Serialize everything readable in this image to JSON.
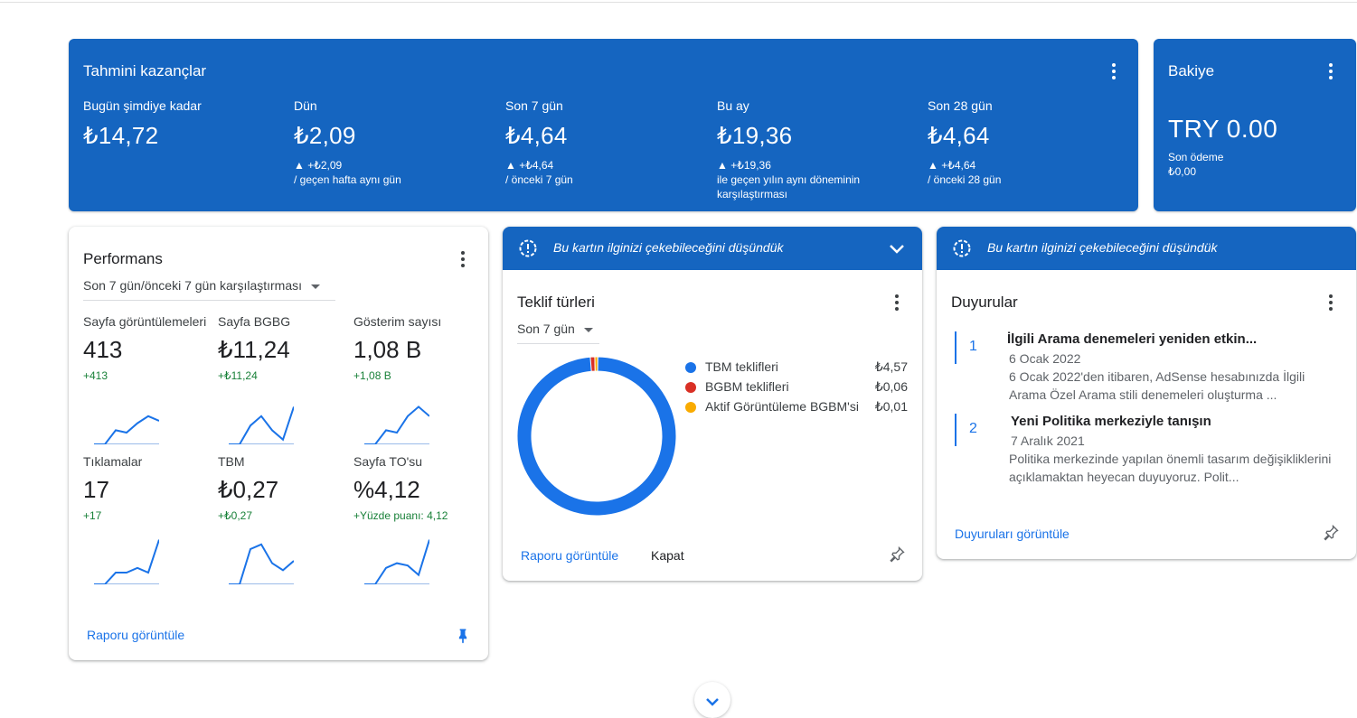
{
  "earnings": {
    "title": "Tahmini kazançlar",
    "metrics": [
      {
        "label": "Bugün şimdiye kadar",
        "value": "₺14,72",
        "change": "",
        "note": ""
      },
      {
        "label": "Dün",
        "value": "₺2,09",
        "change": "▲ +₺2,09",
        "note": "/ geçen hafta aynı gün"
      },
      {
        "label": "Son 7 gün",
        "value": "₺4,64",
        "change": "▲ +₺4,64",
        "note": "/ önceki 7 gün"
      },
      {
        "label": "Bu ay",
        "value": "₺19,36",
        "change": "▲ +₺19,36",
        "note": "ile geçen yılın aynı döneminin karşılaştırması"
      },
      {
        "label": "Son 28 gün",
        "value": "₺4,64",
        "change": "▲ +₺4,64",
        "note": "/ önceki 28 gün"
      }
    ]
  },
  "balance": {
    "title": "Bakiye",
    "value": "TRY 0.00",
    "last_payment_label": "Son ödeme",
    "last_payment_value": "₺0,00"
  },
  "performance": {
    "title": "Performans",
    "period": "Son 7 gün/önceki 7 gün karşılaştırması",
    "metrics": [
      {
        "label": "Sayfa görüntülemeleri",
        "value": "413",
        "change": "+413",
        "trend": [
          0,
          0,
          30,
          25,
          45,
          60,
          50
        ]
      },
      {
        "label": "Sayfa BGBG",
        "value": "₺11,24",
        "change": "+₺11,24",
        "trend": [
          0,
          0,
          40,
          60,
          30,
          10,
          80
        ]
      },
      {
        "label": "Gösterim sayısı",
        "value": "1,08 B",
        "change": "+1,08 B",
        "trend": [
          0,
          0,
          30,
          25,
          60,
          80,
          60
        ]
      },
      {
        "label": "Tıklamalar",
        "value": "17",
        "change": "+17",
        "trend": [
          0,
          0,
          25,
          25,
          35,
          25,
          95
        ]
      },
      {
        "label": "TBM",
        "value": "₺0,27",
        "change": "+₺0,27",
        "trend": [
          0,
          0,
          75,
          85,
          45,
          30,
          50
        ]
      },
      {
        "label": "Sayfa TO'su",
        "value": "%4,12",
        "change": "+Yüzde puanı: 4,12",
        "trend": [
          0,
          0,
          35,
          45,
          40,
          20,
          95
        ]
      }
    ],
    "view_report": "Raporu görüntüle"
  },
  "suggestion_header": "Bu kartın ilginizi çekebileceğini düşündük",
  "bid_types": {
    "title": "Teklif türleri",
    "period": "Son 7 gün",
    "items": [
      {
        "name": "TBM teklifleri",
        "amount": "₺4,57",
        "value": 4.57,
        "color": "#1a73e8"
      },
      {
        "name": "BGBM teklifleri",
        "amount": "₺0,06",
        "value": 0.06,
        "color": "#d93025"
      },
      {
        "name": "Aktif Görüntüleme BGBM'si",
        "amount": "₺0,01",
        "value": 0.01,
        "color": "#f9ab00"
      }
    ],
    "view_report": "Raporu görüntüle",
    "close": "Kapat"
  },
  "announcements": {
    "title": "Duyurular",
    "items": [
      {
        "num": "1",
        "title": "İlgili Arama denemeleri yeniden etkin...",
        "date": "6 Ocak 2022",
        "body": "6 Ocak 2022'den itibaren, AdSense hesabınızda İlgili Arama Özel Arama stili denemeleri oluşturma ..."
      },
      {
        "num": "2",
        "title": "Yeni Politika merkeziyle tanışın",
        "date": "7 Aralık 2021",
        "body": "Politika merkezinde yapılan önemli tasarım değişikliklerini açıklamaktan heyecan duyuyoruz. Polit..."
      }
    ],
    "view_all": "Duyuruları görüntüle"
  },
  "icons": {
    "menu": "more-vert-icon",
    "insight": "lightbulb-insight-icon",
    "chevron": "chevron-down-icon",
    "pin": "pin-icon"
  },
  "colors": {
    "brand_blue": "#1565c0",
    "link_blue": "#1a73e8",
    "positive_green": "#188038"
  }
}
